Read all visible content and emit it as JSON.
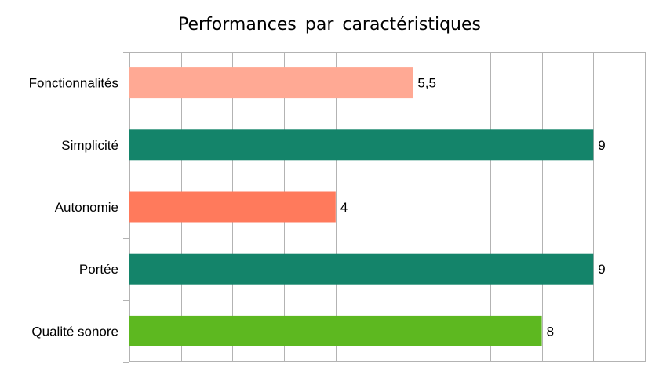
{
  "chart_data": {
    "type": "bar",
    "orientation": "horizontal",
    "title": "Performances par caractéristiques",
    "categories": [
      "Fonctionnalités",
      "Simplicité",
      "Autonomie",
      "Portée",
      "Qualité sonore"
    ],
    "values": [
      5.5,
      9,
      4,
      9,
      8
    ],
    "value_labels": [
      "5,5",
      "9",
      "4",
      "9",
      "8"
    ],
    "colors": [
      "#ffa994",
      "#14846a",
      "#ff7a5c",
      "#14846a",
      "#5db820"
    ],
    "xlim": [
      0,
      10
    ],
    "grid": true,
    "legend": "none"
  }
}
